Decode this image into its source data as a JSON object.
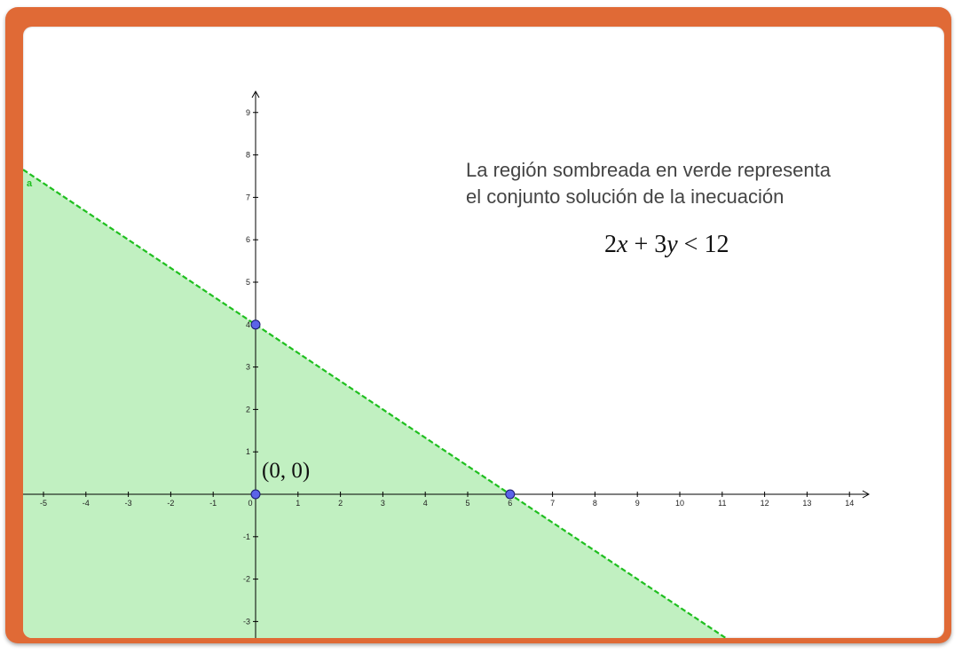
{
  "description": {
    "line1": "La región sombreada en verde representa",
    "line2": "el conjunto solución de la inecuación"
  },
  "inequality": {
    "coef_x": "2",
    "var_x": "x",
    "plus": "+",
    "coef_y": "3",
    "var_y": "y",
    "relation": "<",
    "constant": "12"
  },
  "origin_label": "(0, 0)",
  "line_name": "a",
  "colors": {
    "frame": "#e06a36",
    "shade": "#c1f0c1",
    "line": "#1fbf1f",
    "point": "#5b63e8"
  },
  "chart_data": {
    "type": "line",
    "xlim": [
      -5.6,
      14.4
    ],
    "ylim": [
      -3.4,
      9.5
    ],
    "x_ticks": [
      -5,
      -4,
      -3,
      -2,
      -1,
      0,
      1,
      2,
      3,
      4,
      5,
      6,
      7,
      8,
      9,
      10,
      11,
      12,
      13,
      14
    ],
    "y_ticks": [
      -3,
      -2,
      -1,
      1,
      2,
      3,
      4,
      5,
      6,
      7,
      8,
      9
    ],
    "boundary_line": {
      "a": 2,
      "b": 3,
      "c": 12,
      "style": "dashed"
    },
    "shaded_region": "2x + 3y < 12",
    "points": [
      {
        "name": "origin",
        "x": 0,
        "y": 0
      },
      {
        "name": "y-intercept",
        "x": 0,
        "y": 4
      },
      {
        "name": "x-intercept",
        "x": 6,
        "y": 0
      }
    ]
  }
}
